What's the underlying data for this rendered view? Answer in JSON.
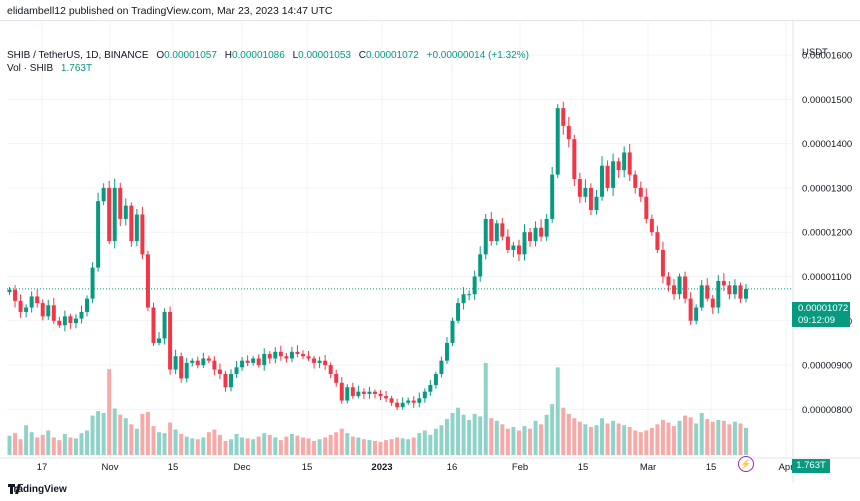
{
  "header": {
    "publish_line": "elidambell12 published on TradingView.com, Mar 23, 2023 14:47 UTC"
  },
  "legend": {
    "symbol": "SHIB / TetherUS, 1D, BINANCE",
    "o_label": "O",
    "o": "0.00001057",
    "h_label": "H",
    "h": "0.00001086",
    "l_label": "L",
    "l": "0.00001053",
    "c_label": "C",
    "c": "0.00001072",
    "change": "+0.00000014 (+1.32%)",
    "vol_label": "Vol · SHIB",
    "vol": "1.763T"
  },
  "axis": {
    "currency": "USDT",
    "price_ticks": [
      "0.00001600",
      "0.00001500",
      "0.00001400",
      "0.00001300",
      "0.00001200",
      "0.00001100",
      "0.00001000",
      "0.00000900",
      "0.00000800"
    ],
    "time_ticks": [
      "17",
      "Nov",
      "15",
      "Dec",
      "15",
      "2023",
      "16",
      "Feb",
      "15",
      "Mar",
      "15",
      "Apr"
    ]
  },
  "current_price": {
    "price": "0.00001072",
    "countdown": "09:12:09"
  },
  "volume_tag": "1.763T",
  "colors": {
    "up": "#089981",
    "down": "#f23645",
    "vol_up": "#8fd3c8",
    "vol_down": "#f7a9a7",
    "grid": "#f0f3fa",
    "label_bg": "#089981"
  },
  "footer": {
    "brand": "TradingView"
  },
  "chart_data": {
    "type": "candlestick",
    "title": "SHIB / TetherUS, 1D, BINANCE",
    "price_unit": "USDT",
    "ylim": [
      7.5e-06,
      1.63e-05
    ],
    "grid": true,
    "legend_position": "top-left",
    "closes": [
      1.07e-05,
      1.045e-05,
      1.02e-05,
      1.03e-05,
      1.055e-05,
      1.04e-05,
      1.01e-05,
      1.035e-05,
      1e-05,
      9.9e-06,
      1.01e-05,
      9.95e-06,
      1.005e-05,
      1.02e-05,
      1.05e-05,
      1.12e-05,
      1.27e-05,
      1.3e-05,
      1.18e-05,
      1.3e-05,
      1.23e-05,
      1.26e-05,
      1.18e-05,
      1.24e-05,
      1.15e-05,
      1.03e-05,
      9.5e-06,
      9.6e-06,
      1.02e-05,
      8.9e-06,
      9.2e-06,
      8.7e-06,
      9.05e-06,
      9.1e-06,
      9e-06,
      9.15e-06,
      9.1e-06,
      8.9e-06,
      8.8e-06,
      8.5e-06,
      8.8e-06,
      8.95e-06,
      9.1e-06,
      9.05e-06,
      9.15e-06,
      9e-06,
      9.25e-06,
      9.15e-06,
      9.3e-06,
      9.2e-06,
      9.15e-06,
      9.3e-06,
      9.25e-06,
      9.2e-06,
      9.15e-06,
      9.05e-06,
      9.1e-06,
      9e-06,
      8.8e-06,
      8.6e-06,
      8.2e-06,
      8.5e-06,
      8.3e-06,
      8.4e-06,
      8.35e-06,
      8.4e-06,
      8.35e-06,
      8.3e-06,
      8.25e-06,
      8.15e-06,
      8.05e-06,
      8.15e-06,
      8.2e-06,
      8.15e-06,
      8.25e-06,
      8.4e-06,
      8.55e-06,
      8.8e-06,
      9.1e-06,
      9.5e-06,
      1e-05,
      1.04e-05,
      1.06e-05,
      1.06e-05,
      1.1e-05,
      1.15e-05,
      1.23e-05,
      1.18e-05,
      1.22e-05,
      1.19e-05,
      1.16e-05,
      1.17e-05,
      1.15e-05,
      1.2e-05,
      1.18e-05,
      1.21e-05,
      1.19e-05,
      1.23e-05,
      1.33e-05,
      1.48e-05,
      1.44e-05,
      1.41e-05,
      1.32e-05,
      1.28e-05,
      1.3e-05,
      1.25e-05,
      1.28e-05,
      1.35e-05,
      1.3e-05,
      1.36e-05,
      1.34e-05,
      1.38e-05,
      1.33e-05,
      1.3e-05,
      1.28e-05,
      1.23e-05,
      1.2e-05,
      1.16e-05,
      1.1e-05,
      1.08e-05,
      1.06e-05,
      1.1e-05,
      1.05e-05,
      1e-05,
      1.03e-05,
      1.08e-05,
      1.05e-05,
      1.03e-05,
      1.09e-05,
      1.08e-05,
      1.06e-05,
      1.08e-05,
      1.05e-05,
      1.072e-05
    ],
    "volume_note": "Volume histogram per candle (SHIB), relative heights",
    "volumes": [
      2.2,
      2.5,
      1.8,
      3.4,
      2.6,
      2.0,
      2.3,
      2.8,
      2.0,
      1.7,
      2.4,
      2.0,
      1.9,
      2.5,
      2.8,
      4.5,
      5.0,
      4.8,
      9.8,
      5.3,
      4.6,
      4.2,
      3.5,
      3.0,
      4.7,
      4.9,
      3.3,
      2.6,
      2.5,
      3.7,
      2.9,
      2.4,
      2.1,
      1.9,
      1.8,
      2.0,
      2.6,
      2.9,
      2.3,
      1.6,
      1.8,
      2.4,
      2.0,
      1.9,
      1.8,
      2.1,
      2.5,
      2.3,
      2.0,
      1.7,
      2.1,
      2.4,
      2.2,
      2.0,
      1.9,
      1.6,
      1.8,
      2.0,
      2.3,
      2.6,
      3.0,
      2.5,
      2.1,
      2.0,
      1.8,
      1.7,
      1.6,
      1.5,
      1.7,
      1.8,
      2.0,
      1.9,
      1.8,
      2.0,
      2.5,
      2.8,
      2.3,
      3.0,
      3.4,
      4.1,
      4.8,
      5.4,
      4.6,
      4.0,
      4.7,
      4.4,
      10.5,
      4.2,
      3.9,
      3.5,
      3.0,
      3.2,
      2.8,
      3.3,
      3.0,
      3.9,
      3.5,
      4.6,
      5.8,
      10.0,
      5.4,
      4.7,
      4.2,
      3.8,
      3.5,
      3.2,
      3.4,
      4.2,
      3.6,
      3.9,
      3.6,
      3.4,
      3.2,
      2.8,
      2.6,
      2.8,
      3.1,
      3.5,
      4.0,
      3.7,
      3.3,
      3.9,
      4.5,
      4.3,
      3.6,
      4.8,
      4.1,
      3.8,
      4.0,
      3.9,
      3.5,
      3.8,
      3.6,
      3.1
    ]
  }
}
